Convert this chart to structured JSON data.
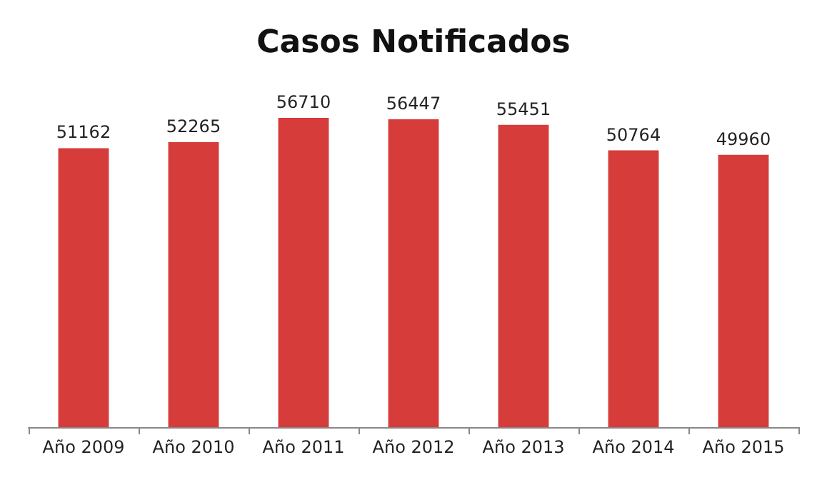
{
  "chart_data": {
    "type": "bar",
    "title": "Casos Notificados",
    "categories": [
      "Año 2009",
      "Año 2010",
      "Año 2011",
      "Año 2012",
      "Año 2013",
      "Año 2014",
      "Año 2015"
    ],
    "values": [
      51162,
      52265,
      56710,
      56447,
      55451,
      50764,
      49960
    ],
    "color": "#d63c3a",
    "data_labels": true,
    "tick_labels": "x",
    "grid": false
  }
}
